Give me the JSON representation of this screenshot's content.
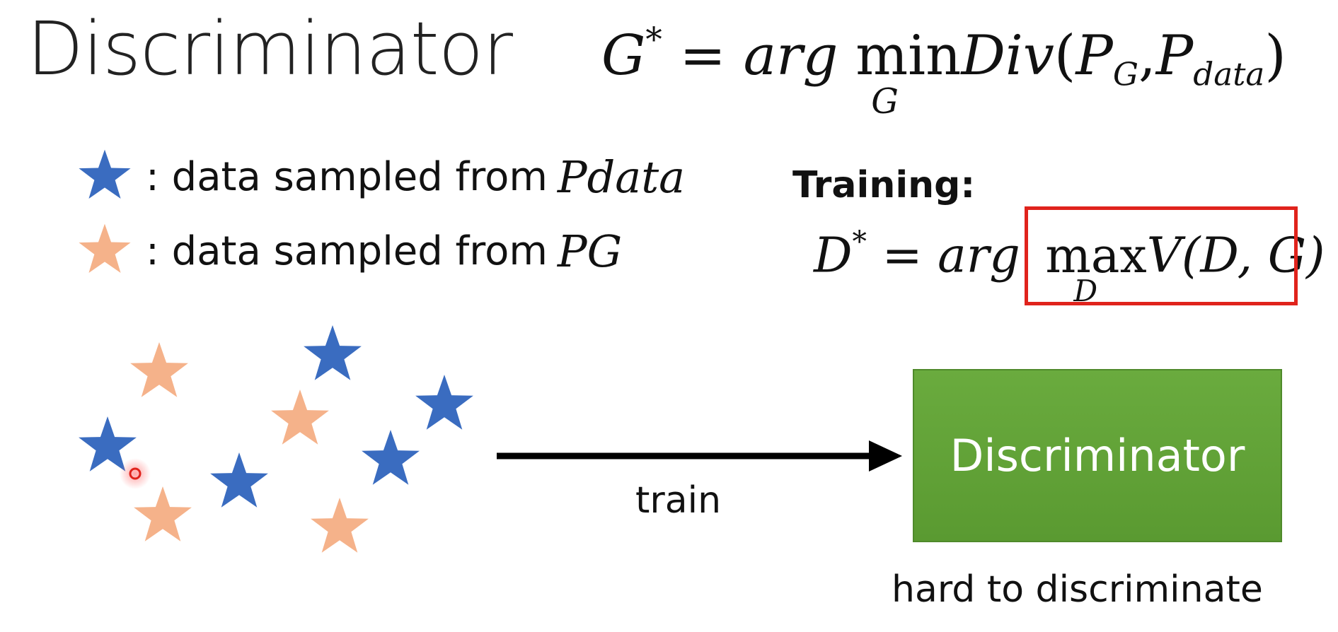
{
  "title": "Discriminator",
  "objective": {
    "lhs": "G",
    "lhs_sup": "*",
    "eq": "=",
    "arg": "arg",
    "op": "min",
    "op_sub": "G",
    "func": "Div",
    "args_open": "(",
    "p1": "P",
    "p1_sub": "G",
    "comma": ",",
    "p2": "P",
    "p2_sub": "data",
    "args_close": ")"
  },
  "legend": {
    "real": {
      "label": ": data sampled from",
      "math": "P",
      "math_sub": "data",
      "color": "#3a6cc0",
      "icon": "star-icon"
    },
    "fake": {
      "label": ": data sampled from",
      "math": "P",
      "math_sub": "G",
      "color": "#f5b28a",
      "icon": "star-icon"
    }
  },
  "training": {
    "heading": "Training:",
    "lhs": "D",
    "lhs_sup": "*",
    "eq": "=",
    "arg": "arg",
    "op": "max",
    "op_sub": "D",
    "func": "V(D, G)",
    "highlight_color": "#e0231c"
  },
  "arrow_label": "train",
  "discriminator_box": {
    "label": "Discriminator",
    "color": "#62a338"
  },
  "caption": "hard to discriminate",
  "colors": {
    "real_star": "#3a6cc0",
    "fake_star": "#f5b28a",
    "arrow": "#000000",
    "cursor": "#e0231c"
  }
}
